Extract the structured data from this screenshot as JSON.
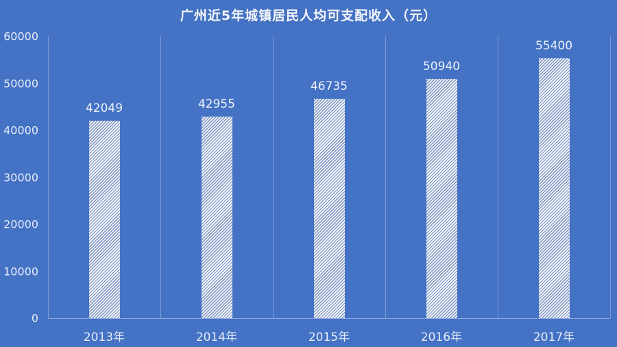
{
  "chart_data": {
    "type": "bar",
    "title": "广州近5年城镇居民人均可支配收入（元）",
    "categories": [
      "2013年",
      "2014年",
      "2015年",
      "2016年",
      "2017年"
    ],
    "values": [
      42049,
      42955,
      46735,
      50940,
      55400
    ],
    "data_labels": [
      "42049",
      "42955",
      "46735",
      "50940",
      "55400"
    ],
    "xlabel": "",
    "ylabel": "",
    "ylim": [
      0,
      60000
    ],
    "yticks": [
      "0",
      "10000",
      "20000",
      "30000",
      "40000",
      "50000",
      "60000"
    ],
    "grid": "vertical category separators",
    "legend": "none",
    "bar_fill": "white diagonal hatch",
    "background_color": "#4472c4"
  }
}
